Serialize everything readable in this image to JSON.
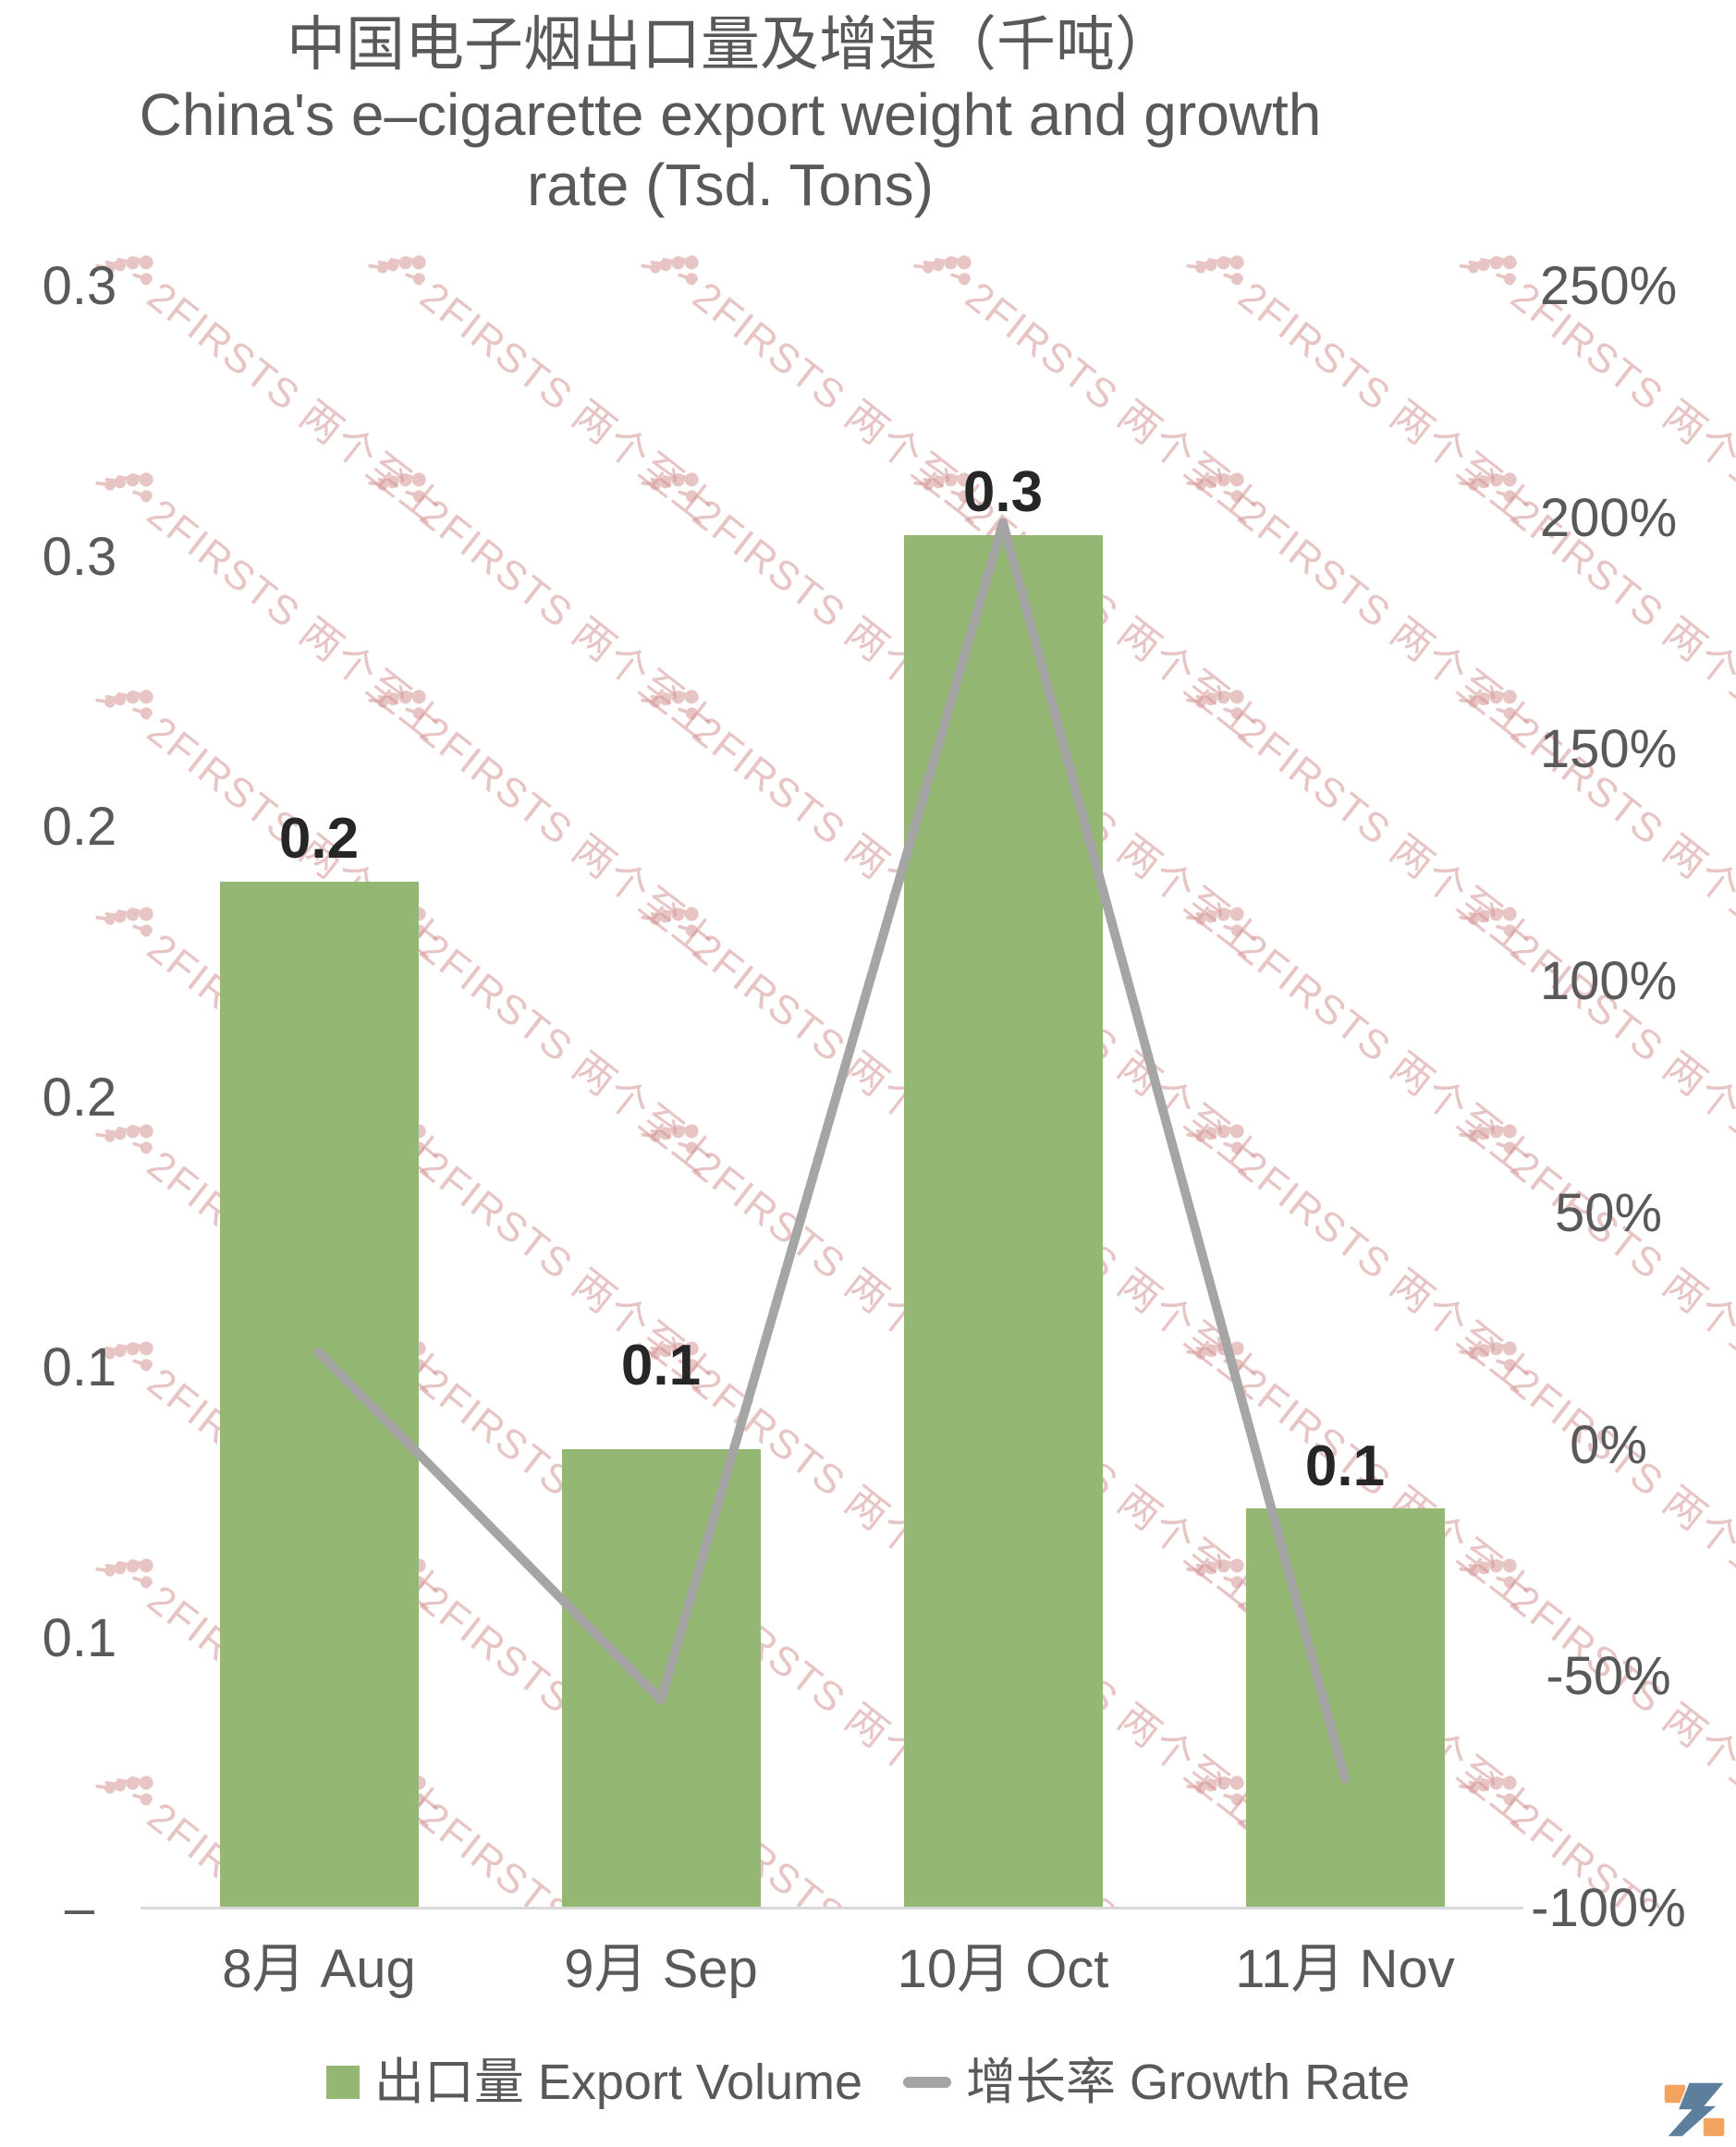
{
  "page": {
    "background": "#FFFFFF"
  },
  "title": {
    "line1": "中国电子烟出口量及增速（千吨）",
    "line2": "China's e–cigarette export weight and growth",
    "line3": "rate (Tsd. Tons)"
  },
  "watermark": {
    "text": "2FIRSTS 两个至上",
    "color": "#D69696"
  },
  "chart_data": {
    "type": "combo bar+line, dual axis",
    "title": "中国电子烟出口量及增速（千吨） China's e–cigarette export weight and growth rate (Tsd. Tons)",
    "categories": [
      "8月 Aug",
      "9月 Sep",
      "10月 Oct",
      "11月 Nov"
    ],
    "series": [
      {
        "name": "出口量 Export Volume",
        "chart_type": "bar",
        "axis": "left-primary",
        "color": "#94B873",
        "values": [
          0.2,
          0.1,
          0.3,
          0.1
        ],
        "data_labels": [
          "0.2",
          "0.1",
          "0.3",
          "0.1"
        ],
        "values_plotted_estimate": [
          0.19,
          0.085,
          0.254,
          0.074
        ]
      },
      {
        "name": "增长率 Growth Rate",
        "chart_type": "line",
        "axis": "right-secondary",
        "color": "#A5A5A5",
        "values_pct_estimate": [
          20,
          -55,
          199,
          -72
        ]
      }
    ],
    "left_axis": {
      "min": 0,
      "max": 0.3,
      "tick_labels_top_to_bottom": [
        "0.3",
        "0.3",
        "0.2",
        "0.2",
        "0.1",
        "0.1",
        "–"
      ]
    },
    "right_axis": {
      "min_pct": -100,
      "max_pct": 250,
      "tick_labels_top_to_bottom": [
        "250%",
        "200%",
        "150%",
        "100%",
        "50%",
        "0%",
        "-50%",
        "-100%"
      ]
    },
    "grid": "off",
    "legend_position": "bottom-center"
  },
  "legend": {
    "items": [
      {
        "label": "出口量 Export Volume",
        "marker": "square",
        "color": "#94B873"
      },
      {
        "label": "增长率 Growth Rate",
        "marker": "line-dash",
        "color": "#A5A5A5"
      }
    ]
  },
  "logo": {
    "name": "2firsts-logo",
    "blue": "#5D7E9C",
    "orange": "#F2A45F"
  }
}
